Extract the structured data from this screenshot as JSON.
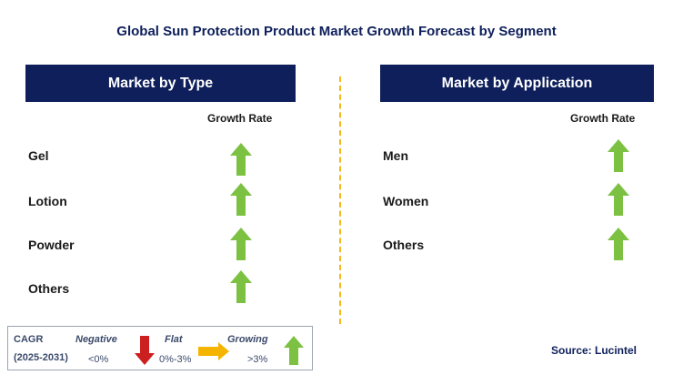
{
  "title": "Global Sun Protection Product Market Growth Forecast by Segment",
  "left_panel": {
    "header": "Market by Type",
    "growth_label": "Growth Rate",
    "rows": [
      {
        "label": "Gel",
        "trend": "growing"
      },
      {
        "label": "Lotion",
        "trend": "growing"
      },
      {
        "label": "Powder",
        "trend": "growing"
      },
      {
        "label": "Others",
        "trend": "growing"
      }
    ]
  },
  "right_panel": {
    "header": "Market by Application",
    "growth_label": "Growth Rate",
    "rows": [
      {
        "label": "Men",
        "trend": "growing"
      },
      {
        "label": "Women",
        "trend": "growing"
      },
      {
        "label": "Others",
        "trend": "growing"
      }
    ]
  },
  "legend": {
    "cagr_label": "CAGR",
    "period": "(2025-2031)",
    "negative_label": "Negative",
    "negative_range": "<0%",
    "flat_label": "Flat",
    "flat_range": "0%-3%",
    "growing_label": "Growing",
    "growing_range": ">3%"
  },
  "source": "Source: Lucintel",
  "colors": {
    "navy": "#0e1f5b",
    "green_arrow": "#7dc142",
    "red_arrow": "#cc1f1f",
    "flat_arrow": "#f5b400",
    "divider": "#f2b81c"
  }
}
